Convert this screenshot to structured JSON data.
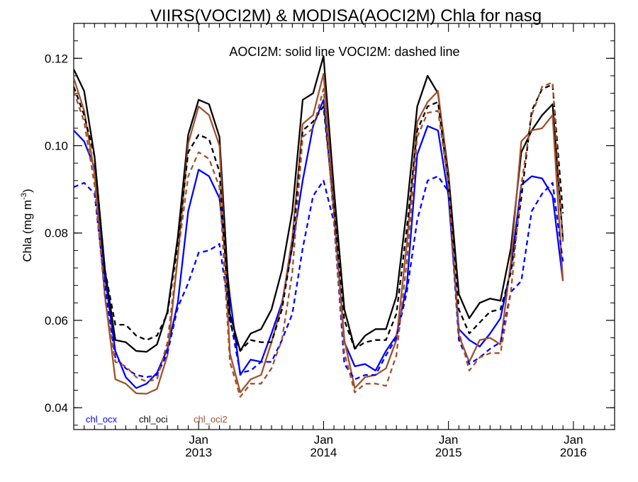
{
  "chart_data": {
    "type": "line",
    "title": "VIIRS(VOCI2M) & MODISA(AOCI2M)  Chla for nasg",
    "ylabel": "Chla (mg m",
    "ylabel_sup": "-3",
    "ylabel_end": ")",
    "annotation": "AOCI2M: solid line   VOCI2M: dashed line",
    "ylim": [
      0.035,
      0.128
    ],
    "yticks": [
      0.04,
      0.06,
      0.08,
      0.1,
      0.12
    ],
    "ytick_labels": [
      "0.04",
      "0.06",
      "0.08",
      "0.10",
      "0.12"
    ],
    "xlim": [
      2012.0,
      2016.33
    ],
    "xticks": [
      {
        "month": "Jan",
        "year": "2013",
        "value": 2013.0
      },
      {
        "month": "Jan",
        "year": "2014",
        "value": 2014.0
      },
      {
        "month": "Jan",
        "year": "2015",
        "value": 2015.0
      },
      {
        "month": "Jan",
        "year": "2016",
        "value": 2016.0
      }
    ],
    "legend": [
      {
        "label": "chl_ocx",
        "color": "#0000ff"
      },
      {
        "label": "chl_oci",
        "color": "#000000"
      },
      {
        "label": "chl_oci2",
        "color": "#a0522d"
      }
    ],
    "x_start": 2012.0,
    "x_step": 0.08333,
    "series": [
      {
        "name": "chl_ocx",
        "style": "solid",
        "color": "#0000ff",
        "values": [
          0.1035,
          0.101,
          0.095,
          0.07,
          0.053,
          0.047,
          0.0445,
          0.0455,
          0.048,
          0.0535,
          0.064,
          0.085,
          0.0945,
          0.093,
          0.088,
          0.0655,
          0.0475,
          0.051,
          0.0505,
          0.057,
          0.064,
          0.077,
          0.092,
          0.1045,
          0.1105,
          0.085,
          0.055,
          0.0495,
          0.05,
          0.0485,
          0.053,
          0.0565,
          0.068,
          0.098,
          0.1045,
          0.1035,
          0.0885,
          0.058,
          0.0555,
          0.054,
          0.057,
          0.0605,
          0.072,
          0.091,
          0.093,
          0.0925,
          0.0885,
          0.069
        ]
      },
      {
        "name": "chl_oci",
        "style": "solid",
        "color": "#000000",
        "values": [
          0.1175,
          0.1125,
          0.0975,
          0.0715,
          0.0555,
          0.055,
          0.053,
          0.0528,
          0.0545,
          0.062,
          0.079,
          0.1025,
          0.1105,
          0.1095,
          0.102,
          0.0615,
          0.053,
          0.057,
          0.058,
          0.0625,
          0.0715,
          0.085,
          0.1105,
          0.112,
          0.1205,
          0.09,
          0.0625,
          0.0535,
          0.0565,
          0.058,
          0.058,
          0.0655,
          0.0855,
          0.109,
          0.116,
          0.112,
          0.0935,
          0.066,
          0.0605,
          0.064,
          0.065,
          0.0645,
          0.0765,
          0.0985,
          0.1035,
          0.107,
          0.1095,
          0.0785
        ]
      },
      {
        "name": "chl_oci2",
        "style": "solid",
        "color": "#a0522d",
        "values": [
          0.1155,
          0.108,
          0.0935,
          0.0655,
          0.0465,
          0.0455,
          0.0433,
          0.0432,
          0.0443,
          0.052,
          0.0745,
          0.1005,
          0.109,
          0.107,
          0.1,
          0.0525,
          0.0435,
          0.0465,
          0.0475,
          0.055,
          0.0635,
          0.079,
          0.105,
          0.107,
          0.1165,
          0.0855,
          0.0555,
          0.0445,
          0.047,
          0.0475,
          0.049,
          0.0555,
          0.0775,
          0.1055,
          0.11,
          0.1125,
          0.092,
          0.0565,
          0.0505,
          0.0555,
          0.056,
          0.0545,
          0.0735,
          0.101,
          0.1035,
          0.104,
          0.107,
          0.069
        ]
      },
      {
        "name": "chl_ocx",
        "style": "dashed",
        "color": "#0000ff",
        "values": [
          0.0905,
          0.0915,
          0.089,
          0.0675,
          0.0515,
          0.049,
          0.0475,
          0.047,
          0.0475,
          0.0525,
          0.063,
          0.0685,
          0.0755,
          0.076,
          0.0775,
          0.0605,
          0.048,
          0.0485,
          0.0505,
          0.0505,
          0.0555,
          0.0615,
          0.0765,
          0.0885,
          0.092,
          0.0825,
          0.05,
          0.0465,
          0.0475,
          0.0475,
          0.052,
          0.056,
          0.0665,
          0.083,
          0.092,
          0.093,
          0.0895,
          0.0555,
          0.05,
          0.0515,
          0.0535,
          0.055,
          0.0665,
          0.069,
          0.085,
          0.089,
          0.0915,
          0.0735
        ]
      },
      {
        "name": "chl_oci",
        "style": "dashed",
        "color": "#000000",
        "values": [
          0.1135,
          0.107,
          0.0975,
          0.0715,
          0.059,
          0.059,
          0.0565,
          0.0555,
          0.0565,
          0.0615,
          0.0775,
          0.0985,
          0.1025,
          0.1015,
          0.094,
          0.0595,
          0.053,
          0.0555,
          0.055,
          0.055,
          0.0625,
          0.077,
          0.1035,
          0.1055,
          0.109,
          0.0855,
          0.06,
          0.0535,
          0.055,
          0.0555,
          0.0555,
          0.0615,
          0.081,
          0.1035,
          0.109,
          0.11,
          0.0915,
          0.0625,
          0.057,
          0.0595,
          0.062,
          0.0625,
          0.071,
          0.088,
          0.108,
          0.113,
          0.114,
          0.0845
        ]
      },
      {
        "name": "chl_oci2",
        "style": "dashed",
        "color": "#a0522d",
        "values": [
          0.1125,
          0.1055,
          0.091,
          0.065,
          0.0505,
          0.0495,
          0.047,
          0.046,
          0.0465,
          0.055,
          0.075,
          0.093,
          0.0985,
          0.097,
          0.0905,
          0.0505,
          0.0425,
          0.0455,
          0.0455,
          0.049,
          0.0555,
          0.071,
          0.102,
          0.104,
          0.113,
          0.0825,
          0.0525,
          0.0435,
          0.0455,
          0.0455,
          0.045,
          0.052,
          0.0735,
          0.102,
          0.1075,
          0.108,
          0.091,
          0.0575,
          0.0485,
          0.0515,
          0.0525,
          0.0525,
          0.0665,
          0.091,
          0.107,
          0.1135,
          0.1145,
          0.078
        ]
      }
    ]
  }
}
